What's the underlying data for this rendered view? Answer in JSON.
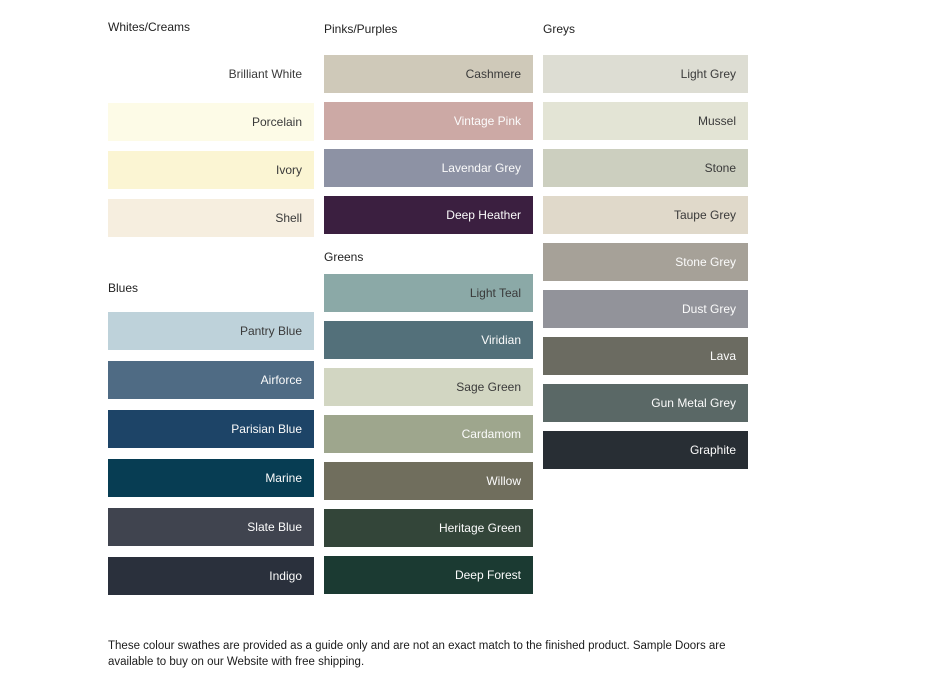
{
  "label_colors": {
    "dark": "#3A3A3A",
    "light": "#FBFBFB"
  },
  "columns": [
    {
      "groups": [
        {
          "title": "Whites/Creams",
          "swatches": [
            {
              "name": "Brilliant White",
              "color": "#FFFFFF",
              "label_tone": "dark"
            },
            {
              "name": "Porcelain",
              "color": "#FDFBE7",
              "label_tone": "dark"
            },
            {
              "name": "Ivory",
              "color": "#FBF5D3",
              "label_tone": "dark"
            },
            {
              "name": "Shell",
              "color": "#F6EEDF",
              "label_tone": "dark"
            }
          ]
        },
        {
          "title": "Blues",
          "swatches": [
            {
              "name": "Pantry Blue",
              "color": "#BED2DA",
              "label_tone": "dark"
            },
            {
              "name": "Airforce",
              "color": "#4F6B84",
              "label_tone": "light"
            },
            {
              "name": "Parisian Blue",
              "color": "#1D4467",
              "label_tone": "light"
            },
            {
              "name": "Marine",
              "color": "#073D53",
              "label_tone": "light"
            },
            {
              "name": "Slate Blue",
              "color": "#40444F",
              "label_tone": "light"
            },
            {
              "name": "Indigo",
              "color": "#2A303C",
              "label_tone": "light"
            }
          ]
        }
      ]
    },
    {
      "groups": [
        {
          "title": "Pinks/Purples",
          "swatches": [
            {
              "name": "Cashmere",
              "color": "#CFC9B9",
              "label_tone": "dark"
            },
            {
              "name": "Vintage Pink",
              "color": "#CCA9A5",
              "label_tone": "light"
            },
            {
              "name": "Lavendar Grey",
              "color": "#8D92A4",
              "label_tone": "light"
            },
            {
              "name": "Deep Heather",
              "color": "#3B1F40",
              "label_tone": "light"
            }
          ]
        },
        {
          "title": "Greens",
          "swatches": [
            {
              "name": "Light Teal",
              "color": "#8BA9A7",
              "label_tone": "dark"
            },
            {
              "name": "Viridian",
              "color": "#53707A",
              "label_tone": "light"
            },
            {
              "name": "Sage Green",
              "color": "#D2D6C2",
              "label_tone": "dark"
            },
            {
              "name": "Cardamom",
              "color": "#9EA68D",
              "label_tone": "light"
            },
            {
              "name": "Willow",
              "color": "#706E5D",
              "label_tone": "light"
            },
            {
              "name": "Heritage Green",
              "color": "#334539",
              "label_tone": "light"
            },
            {
              "name": "Deep Forest",
              "color": "#1B3A32",
              "label_tone": "light"
            }
          ]
        }
      ]
    },
    {
      "groups": [
        {
          "title": "Greys",
          "swatches": [
            {
              "name": "Light Grey",
              "color": "#DDDDD3",
              "label_tone": "dark"
            },
            {
              "name": "Mussel",
              "color": "#E3E4D5",
              "label_tone": "dark"
            },
            {
              "name": "Stone",
              "color": "#CCCFBF",
              "label_tone": "dark"
            },
            {
              "name": "Taupe Grey",
              "color": "#E0D9CA",
              "label_tone": "dark"
            },
            {
              "name": "Stone Grey",
              "color": "#A6A198",
              "label_tone": "light"
            },
            {
              "name": "Dust Grey",
              "color": "#92939A",
              "label_tone": "light"
            },
            {
              "name": "Lava",
              "color": "#6B6B61",
              "label_tone": "light"
            },
            {
              "name": "Gun Metal Grey",
              "color": "#5A6866",
              "label_tone": "light"
            },
            {
              "name": "Graphite",
              "color": "#282E34",
              "label_tone": "light"
            }
          ]
        }
      ]
    }
  ],
  "footer": {
    "note": "These colour swathes are provided as a guide only and are not an exact match to the finished product.  Sample Doors are available to buy on our Website with free shipping."
  }
}
